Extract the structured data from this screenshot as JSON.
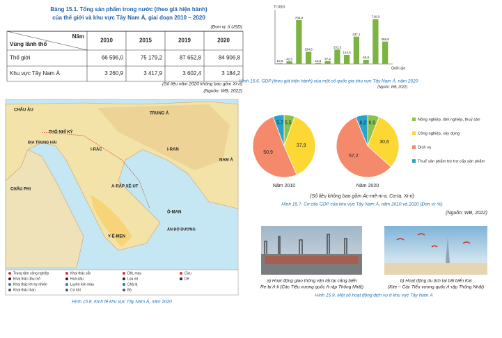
{
  "table": {
    "title": [
      "Bảng 15.1. Tổng sản phẩm trong nước (theo giá hiện hành)",
      "của thế giới và khu vực Tây Nam Á, giai đoạn 2010 – 2020"
    ],
    "unit": "(Đơn vị: tỉ USD)",
    "corner_top": "Năm",
    "corner_bottom": "Vùng lãnh thổ",
    "columns": [
      "2010",
      "2015",
      "2019",
      "2020"
    ],
    "rows": [
      [
        "Thế giới",
        "66 596,0",
        "75 179,2",
        "87 652,8",
        "84 906,8"
      ],
      [
        "Khu vực Tây Nam Á",
        "3 260,9",
        "3 417,9",
        "3 602,4",
        "3 184,2"
      ]
    ],
    "notes": [
      "(Số liệu năm 2020 không bao gồm Xi-ri)",
      "(Nguồn: WB, 2022)"
    ]
  },
  "chart_data": [
    {
      "type": "bar",
      "y_label": "Tỉ USD",
      "x_label": "Quốc gia",
      "categories": [
        null,
        null,
        null,
        null,
        null,
        null,
        null,
        null,
        null,
        null,
        null,
        null
      ],
      "values": [
        10.6,
        42.6,
        702.3,
        194.6,
        15.8,
        47.2,
        231.3,
        144.5,
        437.1,
        66.8,
        716.9,
        358.8
      ],
      "value_labels": [
        "10,6",
        "42,6",
        "702,3",
        "194,6",
        "15,8",
        "47,2",
        "231,3",
        "144,5",
        "437,1",
        "66,8",
        "716,9",
        "358,8"
      ],
      "color": "#7cb342",
      "ylim": [
        0,
        800
      ],
      "caption": "Hình 15.6. GDP (theo giá hiện hành) của một số quốc gia khu vực Tây Nam Á, năm 2020",
      "source": "(Nguồn: WB, 2022)"
    },
    {
      "type": "pie",
      "title": "Năm 2010",
      "categories": [
        "Nông nghiệp, lâm nghiệp, thuỷ sản",
        "Công nghiệp, xây dựng",
        "Dịch vụ",
        "Thuế sản phẩm trừ trợ cấp sản phẩm"
      ],
      "colors": [
        "#8bc34a",
        "#fdd835",
        "#f4896b",
        "#29a3c9"
      ],
      "values": [
        5.5,
        37.9,
        50.9,
        5.7
      ],
      "value_labels": [
        "5,5",
        "37,9",
        "50,9",
        "5,7"
      ]
    },
    {
      "type": "pie",
      "title": "Năm 2020",
      "values": [
        6.0,
        30.6,
        57.2,
        6.2
      ],
      "value_labels": [
        "6,0",
        "30,6",
        "57,2",
        "6,2"
      ]
    }
  ],
  "pie_notes": [
    "(Số liệu không bao gồm Ác-mê-ni-a, Ca-ta, Xi-ri)",
    "Hình 15.7. Cơ cấu GDP của khu vực Tây Nam Á, năm 2010 và 2020 (Đơn vị: %)",
    "(Nguồn: WB, 2022)"
  ],
  "map": {
    "labels": [
      "CHÂU ÂU",
      "TRUNG Á",
      "NAM Á",
      "CHÂU PHI",
      "THỔ NHĨ KỲ",
      "I-RAN",
      "I-RẮC",
      "A-RẬP XÊ-UT",
      "Y-Ê-MEN",
      "Ô-MAN",
      "ẤN ĐỘ DƯƠNG",
      "ĐỊA TRUNG HẢI"
    ],
    "legend": [
      "Trung tâm công nghiệp",
      "Khai thác dầu mỏ",
      "Khai thác khí tự nhiên",
      "Khai thác than",
      "Khai thác sắt",
      "Hoá dầu",
      "Luyện kim màu",
      "Cơ khí",
      "Dệt, may",
      "Lúa mì",
      "Chà là",
      "Bò",
      "Cừu",
      "Dê"
    ],
    "caption": "Hình 15.8. Kinh tế khu vực Tây Nam Á, năm 2020"
  },
  "photos": {
    "a": [
      "a) Hoạt động giao thông vận tải tại cảng biển",
      "Re-bi A-li (Các Tiểu vương quốc A-rập Thống Nhất)"
    ],
    "b": [
      "b) Hoạt động du lịch tại bãi biển Kai",
      "(Kite – Các Tiểu vương quốc A-rập Thống Nhất)"
    ],
    "caption": "Hình 15.9. Một số hoạt động dịch vụ ở khu vực Tây Nam Á"
  }
}
